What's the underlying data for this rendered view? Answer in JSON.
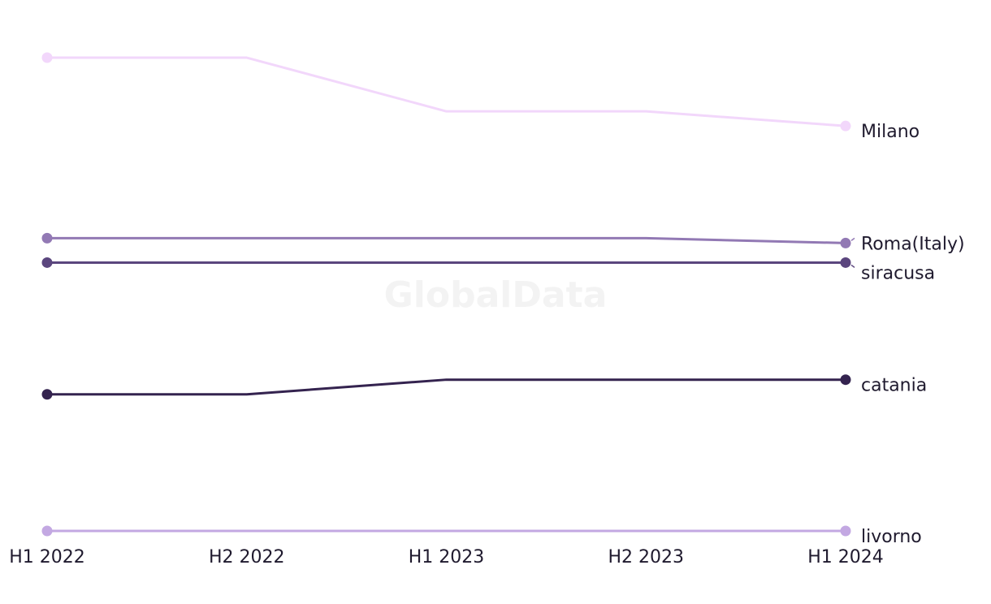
{
  "watermark": "GlobalData",
  "chart_data": {
    "type": "line",
    "categories": [
      "H1 2022",
      "H2 2022",
      "H1 2023",
      "H2 2023",
      "H1 2024"
    ],
    "ylim": [
      0,
      100
    ],
    "grid": false,
    "legend": "direct-labels-right",
    "series": [
      {
        "name": "Milano",
        "color": "#f2d7fb",
        "values": [
          97,
          97,
          86,
          86,
          83
        ]
      },
      {
        "name": "Roma(Italy)",
        "color": "#9279b4",
        "values": [
          60,
          60,
          60,
          60,
          59
        ]
      },
      {
        "name": "siracusa",
        "color": "#5b467e",
        "values": [
          55,
          55,
          55,
          55,
          55
        ]
      },
      {
        "name": "catania",
        "color": "#34234f",
        "values": [
          28,
          28,
          31,
          31,
          31
        ]
      },
      {
        "name": "livorno",
        "color": "#c3a8e2",
        "values": [
          0,
          0,
          0,
          0,
          0
        ]
      }
    ]
  }
}
